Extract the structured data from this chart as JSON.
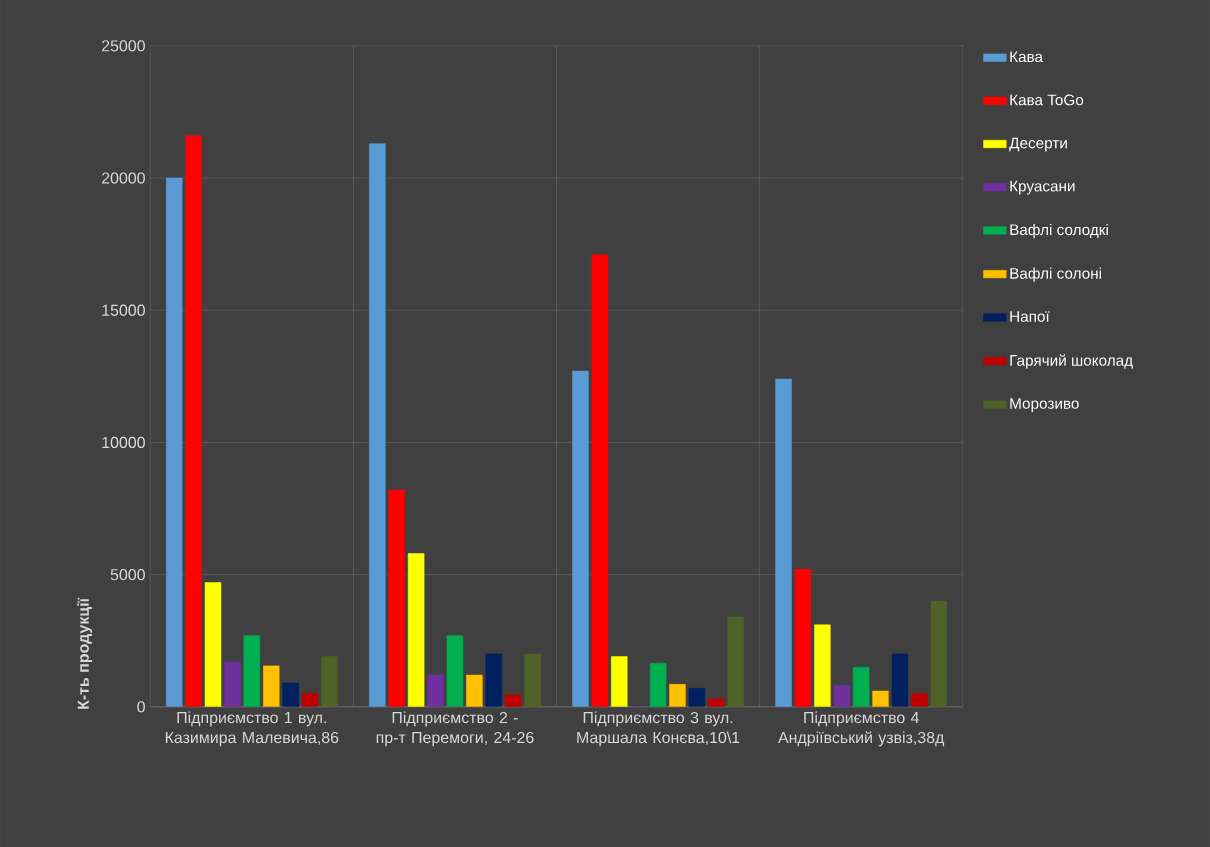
{
  "chart_data": {
    "type": "bar",
    "ylabel": "К-ть продукції",
    "categories": [
      "Підприємство 1 вул. Казимира Малевича,86",
      "Підприємство 2 - пр-т Перемоги, 24-26",
      "Підприємство 3 вул. Маршала Конєва,10\\1",
      "Підприємство 4 Андріївський узвіз,38д"
    ],
    "series": [
      {
        "name": "Кава",
        "color": "#5b9bd5",
        "values": [
          20000,
          21300,
          12700,
          12400
        ]
      },
      {
        "name": "Кава ToGo",
        "color": "#ff0000",
        "values": [
          21600,
          8200,
          17100,
          5200
        ]
      },
      {
        "name": "Десерти",
        "color": "#ffff00",
        "values": [
          4700,
          5800,
          1900,
          3100
        ]
      },
      {
        "name": "Круасани",
        "color": "#7030a0",
        "values": [
          1700,
          1200,
          0,
          800
        ]
      },
      {
        "name": "Вафлі солодкі",
        "color": "#00b050",
        "values": [
          2700,
          2700,
          1650,
          1500
        ]
      },
      {
        "name": "Вафлі солоні",
        "color": "#ffc000",
        "values": [
          1550,
          1200,
          850,
          600
        ]
      },
      {
        "name": "Напої",
        "color": "#002060",
        "values": [
          900,
          2000,
          700,
          2000
        ]
      },
      {
        "name": "Гарячий шоколад",
        "color": "#c00000",
        "values": [
          500,
          450,
          300,
          500
        ]
      },
      {
        "name": "Морозиво",
        "color": "#4f6228",
        "values": [
          1900,
          2000,
          3400,
          4000
        ]
      }
    ],
    "ylim": [
      0,
      25000
    ],
    "yticks": [
      0,
      5000,
      10000,
      15000,
      20000,
      25000
    ],
    "grid": true,
    "legend": "right"
  }
}
